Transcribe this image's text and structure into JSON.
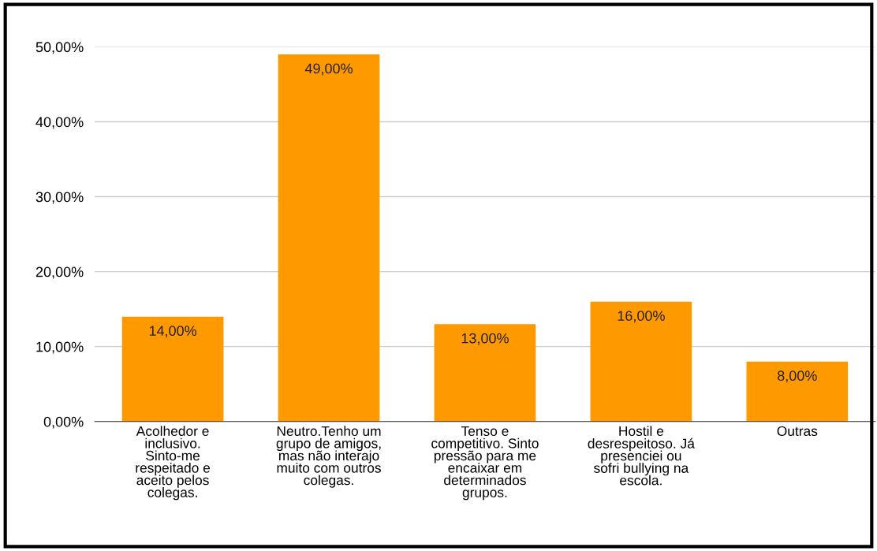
{
  "chart_data": {
    "type": "bar",
    "categories": [
      "Acolhedor e inclusivo. Sinto-me respeitado e aceito pelos colegas.",
      "Neutro.Tenho um grupo de amigos, mas não interajo muito com outros colegas.",
      "Tenso e competitivo. Sinto pressão para me encaixar em determinados grupos.",
      "Hostil e desrespeitoso. Já presenciei ou sofri bullying na escola.",
      "Outras"
    ],
    "values": [
      14,
      49,
      13,
      16,
      8
    ],
    "value_labels": [
      "14,00%",
      "49,00%",
      "13,00%",
      "16,00%",
      "8,00%"
    ],
    "color": "#ff9900",
    "ylim": [
      0,
      50
    ],
    "yticks": [
      {
        "value": 0,
        "label": "0,00%"
      },
      {
        "value": 10,
        "label": "10,00%"
      },
      {
        "value": 20,
        "label": "20,00%"
      },
      {
        "value": 30,
        "label": "30,00%"
      },
      {
        "value": 40,
        "label": "40,00%"
      },
      {
        "value": 50,
        "label": "50,00%"
      }
    ],
    "grid": "y",
    "legend": false
  }
}
